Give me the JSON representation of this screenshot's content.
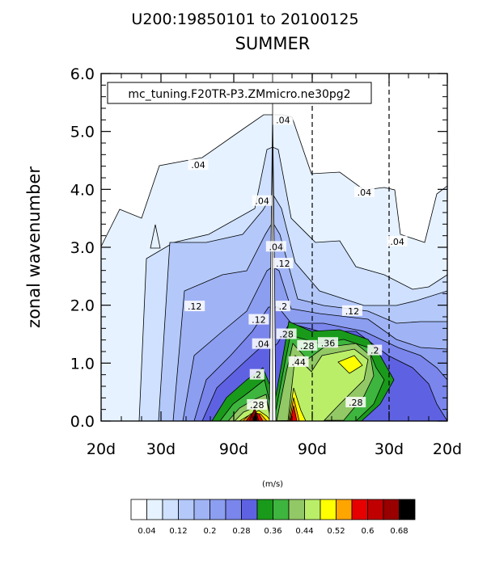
{
  "chart_data": {
    "type": "contour",
    "title": "U200:19850101 to 20100125",
    "subtitle": "SUMMER",
    "case_label": "mc_tuning.F20TR-P3.ZMmicro.ne30pg2",
    "ylabel": "zonal wavenumber",
    "ylim": [
      0,
      6
    ],
    "yticks": [
      "0.0",
      "1.0",
      "2.0",
      "3.0",
      "4.0",
      "5.0",
      "6.0"
    ],
    "xticks": [
      "20d",
      "30d",
      "90d",
      "90d",
      "30d",
      "20d"
    ],
    "x_positions": [
      -0.8,
      -0.5,
      -0.1,
      0.0,
      0.0,
      0.1,
      0.5,
      0.8
    ],
    "note": "",
    "colorbar": {
      "units": "(m/s)",
      "levels": [
        0.04,
        0.08,
        0.12,
        0.16,
        0.2,
        0.24,
        0.28,
        0.32,
        0.36,
        0.4,
        0.44,
        0.48,
        0.52,
        0.56,
        0.6,
        0.64,
        0.68
      ],
      "tick_labels": [
        "0.04",
        "0.12",
        "0.2",
        "0.28",
        "0.36",
        "0.44",
        "0.52",
        "0.6",
        "0.68"
      ],
      "colors": [
        "#ffffff",
        "#e6f2ff",
        "#cfe1ff",
        "#b4c9fa",
        "#a0b4f5",
        "#8c9ef0",
        "#7a86ec",
        "#5e62e2",
        "#1a9a1a",
        "#3eb53e",
        "#92c865",
        "#baee69",
        "#ffff00",
        "#ffa500",
        "#e60000",
        "#c00000",
        "#990000",
        "#000000"
      ]
    },
    "contour_labels": [
      {
        "x": -0.43,
        "y": 4.42,
        "text": ".04"
      },
      {
        "x": -0.06,
        "y": 3.8,
        "text": ".04"
      },
      {
        "x": 0.02,
        "y": 3.01,
        "text": ".04"
      },
      {
        "x": 0.06,
        "y": 5.2,
        "text": ".04"
      },
      {
        "x": 0.53,
        "y": 3.95,
        "text": ".04"
      },
      {
        "x": 0.72,
        "y": 3.1,
        "text": ".04"
      },
      {
        "x": -0.45,
        "y": 1.98,
        "text": ".12"
      },
      {
        "x": -0.08,
        "y": 1.75,
        "text": ".12"
      },
      {
        "x": 0.06,
        "y": 2.72,
        "text": ".12"
      },
      {
        "x": 0.46,
        "y": 1.9,
        "text": ".12"
      },
      {
        "x": -0.06,
        "y": 1.33,
        "text": ".04"
      },
      {
        "x": 0.06,
        "y": 1.98,
        "text": ".2"
      },
      {
        "x": -0.09,
        "y": 0.8,
        "text": ".2"
      },
      {
        "x": 0.59,
        "y": 1.22,
        "text": ".2"
      },
      {
        "x": 0.08,
        "y": 1.5,
        "text": ".28"
      },
      {
        "x": -0.09,
        "y": 0.28,
        "text": ".28"
      },
      {
        "x": 0.48,
        "y": 0.32,
        "text": ".28"
      },
      {
        "x": 0.32,
        "y": 1.35,
        "text": ".36"
      },
      {
        "x": 0.15,
        "y": 1.02,
        "text": ".44"
      },
      {
        "x": 0.2,
        "y": 1.3,
        "text": ".28"
      }
    ]
  }
}
